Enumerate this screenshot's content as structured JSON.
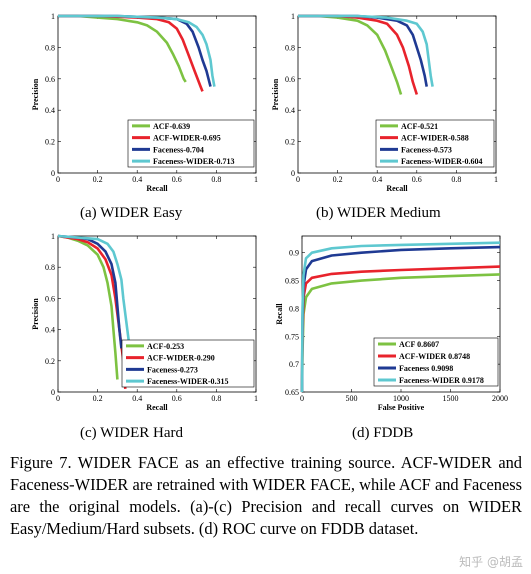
{
  "colors": {
    "acf": "#7dc242",
    "acf_wider": "#e8232c",
    "faceness": "#1f3a93",
    "faceness_wider": "#5ec8d0"
  },
  "chart_data": [
    {
      "type": "line",
      "id": "a",
      "xlabel": "Recall",
      "ylabel": "Precision",
      "xlim": [
        0,
        1
      ],
      "ylim": [
        0,
        1
      ],
      "xticks": [
        "0",
        "0.2",
        "0.4",
        "0.6",
        "0.8",
        "1"
      ],
      "yticks": [
        "0",
        "0.2",
        "0.4",
        "0.6",
        "0.8",
        "1"
      ],
      "legend_position": "bottom-right",
      "series": [
        {
          "name": "ACF-0.639",
          "color": "acf",
          "points": [
            [
              0,
              1
            ],
            [
              0.1,
              1
            ],
            [
              0.2,
              0.99
            ],
            [
              0.3,
              0.98
            ],
            [
              0.4,
              0.96
            ],
            [
              0.45,
              0.94
            ],
            [
              0.5,
              0.9
            ],
            [
              0.55,
              0.83
            ],
            [
              0.58,
              0.76
            ],
            [
              0.61,
              0.68
            ],
            [
              0.635,
              0.6
            ],
            [
              0.645,
              0.58
            ]
          ]
        },
        {
          "name": "ACF-WIDER-0.695",
          "color": "acf_wider",
          "points": [
            [
              0,
              1
            ],
            [
              0.2,
              1
            ],
            [
              0.4,
              0.99
            ],
            [
              0.5,
              0.98
            ],
            [
              0.56,
              0.96
            ],
            [
              0.6,
              0.92
            ],
            [
              0.63,
              0.85
            ],
            [
              0.66,
              0.75
            ],
            [
              0.69,
              0.65
            ],
            [
              0.72,
              0.55
            ],
            [
              0.73,
              0.52
            ]
          ]
        },
        {
          "name": "Faceness-0.704",
          "color": "faceness",
          "points": [
            [
              0,
              1
            ],
            [
              0.3,
              1
            ],
            [
              0.5,
              0.99
            ],
            [
              0.6,
              0.98
            ],
            [
              0.65,
              0.95
            ],
            [
              0.68,
              0.9
            ],
            [
              0.71,
              0.8
            ],
            [
              0.73,
              0.72
            ],
            [
              0.75,
              0.65
            ],
            [
              0.76,
              0.6
            ],
            [
              0.77,
              0.55
            ]
          ]
        },
        {
          "name": "Faceness-WIDER-0.713",
          "color": "faceness_wider",
          "points": [
            [
              0,
              1
            ],
            [
              0.3,
              1
            ],
            [
              0.5,
              0.99
            ],
            [
              0.6,
              0.98
            ],
            [
              0.66,
              0.96
            ],
            [
              0.7,
              0.93
            ],
            [
              0.73,
              0.88
            ],
            [
              0.75,
              0.82
            ],
            [
              0.77,
              0.72
            ],
            [
              0.78,
              0.62
            ],
            [
              0.79,
              0.55
            ]
          ]
        }
      ]
    },
    {
      "type": "line",
      "id": "b",
      "xlabel": "Recall",
      "ylabel": "Precision",
      "xlim": [
        0,
        1
      ],
      "ylim": [
        0,
        1
      ],
      "xticks": [
        "0",
        "0.2",
        "0.4",
        "0.6",
        "0.8",
        "1"
      ],
      "yticks": [
        "0",
        "0.2",
        "0.4",
        "0.6",
        "0.8",
        "1"
      ],
      "legend_position": "bottom-right",
      "series": [
        {
          "name": "ACF-0.521",
          "color": "acf",
          "points": [
            [
              0,
              1
            ],
            [
              0.1,
              1
            ],
            [
              0.2,
              0.99
            ],
            [
              0.3,
              0.97
            ],
            [
              0.35,
              0.94
            ],
            [
              0.4,
              0.88
            ],
            [
              0.44,
              0.78
            ],
            [
              0.47,
              0.68
            ],
            [
              0.5,
              0.58
            ],
            [
              0.52,
              0.5
            ]
          ]
        },
        {
          "name": "ACF-WIDER-0.588",
          "color": "acf_wider",
          "points": [
            [
              0,
              1
            ],
            [
              0.2,
              1
            ],
            [
              0.3,
              0.99
            ],
            [
              0.4,
              0.97
            ],
            [
              0.45,
              0.95
            ],
            [
              0.5,
              0.88
            ],
            [
              0.53,
              0.8
            ],
            [
              0.56,
              0.68
            ],
            [
              0.58,
              0.58
            ],
            [
              0.6,
              0.5
            ]
          ]
        },
        {
          "name": "Faceness-0.573",
          "color": "faceness",
          "points": [
            [
              0,
              1
            ],
            [
              0.3,
              1
            ],
            [
              0.4,
              0.99
            ],
            [
              0.5,
              0.97
            ],
            [
              0.55,
              0.94
            ],
            [
              0.58,
              0.88
            ],
            [
              0.6,
              0.8
            ],
            [
              0.62,
              0.72
            ],
            [
              0.64,
              0.62
            ],
            [
              0.65,
              0.55
            ]
          ]
        },
        {
          "name": "Faceness-WIDER-0.604",
          "color": "faceness_wider",
          "points": [
            [
              0,
              1
            ],
            [
              0.3,
              1
            ],
            [
              0.45,
              0.99
            ],
            [
              0.55,
              0.97
            ],
            [
              0.6,
              0.95
            ],
            [
              0.63,
              0.9
            ],
            [
              0.65,
              0.82
            ],
            [
              0.66,
              0.72
            ],
            [
              0.67,
              0.62
            ],
            [
              0.68,
              0.55
            ]
          ]
        }
      ]
    },
    {
      "type": "line",
      "id": "c",
      "xlabel": "Recall",
      "ylabel": "Precision",
      "xlim": [
        0,
        1
      ],
      "ylim": [
        0,
        1
      ],
      "xticks": [
        "0",
        "0.2",
        "0.4",
        "0.6",
        "0.8",
        "1"
      ],
      "yticks": [
        "0",
        "0.2",
        "0.4",
        "0.6",
        "0.8",
        "1"
      ],
      "legend_position": "bottom-right",
      "series": [
        {
          "name": "ACF-0.253",
          "color": "acf",
          "points": [
            [
              0,
              1
            ],
            [
              0.05,
              0.99
            ],
            [
              0.1,
              0.97
            ],
            [
              0.15,
              0.94
            ],
            [
              0.2,
              0.88
            ],
            [
              0.23,
              0.8
            ],
            [
              0.25,
              0.7
            ],
            [
              0.27,
              0.55
            ],
            [
              0.28,
              0.4
            ],
            [
              0.29,
              0.25
            ],
            [
              0.3,
              0.08
            ]
          ]
        },
        {
          "name": "ACF-WIDER-0.290",
          "color": "acf_wider",
          "points": [
            [
              0,
              1
            ],
            [
              0.05,
              0.99
            ],
            [
              0.1,
              0.98
            ],
            [
              0.15,
              0.96
            ],
            [
              0.2,
              0.92
            ],
            [
              0.24,
              0.85
            ],
            [
              0.27,
              0.75
            ],
            [
              0.29,
              0.6
            ],
            [
              0.31,
              0.4
            ],
            [
              0.33,
              0.2
            ],
            [
              0.34,
              0.02
            ]
          ]
        },
        {
          "name": "Faceness-0.273",
          "color": "faceness",
          "points": [
            [
              0,
              1
            ],
            [
              0.1,
              0.99
            ],
            [
              0.15,
              0.98
            ],
            [
              0.2,
              0.95
            ],
            [
              0.24,
              0.9
            ],
            [
              0.27,
              0.82
            ],
            [
              0.29,
              0.7
            ],
            [
              0.3,
              0.55
            ],
            [
              0.31,
              0.4
            ],
            [
              0.32,
              0.28
            ]
          ]
        },
        {
          "name": "Faceness-WIDER-0.315",
          "color": "faceness_wider",
          "points": [
            [
              0,
              1
            ],
            [
              0.1,
              0.99
            ],
            [
              0.2,
              0.98
            ],
            [
              0.25,
              0.95
            ],
            [
              0.28,
              0.9
            ],
            [
              0.3,
              0.82
            ],
            [
              0.32,
              0.72
            ],
            [
              0.33,
              0.6
            ],
            [
              0.34,
              0.5
            ],
            [
              0.35,
              0.4
            ],
            [
              0.36,
              0.3
            ]
          ]
        }
      ]
    },
    {
      "type": "line",
      "id": "d",
      "xlabel": "False Positive",
      "ylabel": "Recall",
      "xlim": [
        0,
        2000
      ],
      "ylim": [
        0.65,
        0.93
      ],
      "xticks": [
        "0",
        "500",
        "1000",
        "1500",
        "2000"
      ],
      "yticks": [
        "0.65",
        "0.7",
        "0.75",
        "0.8",
        "0.85",
        "0.9"
      ],
      "legend_position": "bottom-right",
      "series": [
        {
          "name": "ACF 0.8607",
          "color": "acf",
          "points": [
            [
              0,
              0.65
            ],
            [
              5,
              0.72
            ],
            [
              15,
              0.79
            ],
            [
              40,
              0.82
            ],
            [
              100,
              0.835
            ],
            [
              300,
              0.845
            ],
            [
              600,
              0.85
            ],
            [
              1000,
              0.855
            ],
            [
              1500,
              0.858
            ],
            [
              2000,
              0.861
            ]
          ]
        },
        {
          "name": "ACF-WIDER 0.8748",
          "color": "acf_wider",
          "points": [
            [
              0,
              0.65
            ],
            [
              5,
              0.75
            ],
            [
              15,
              0.82
            ],
            [
              40,
              0.845
            ],
            [
              100,
              0.855
            ],
            [
              300,
              0.862
            ],
            [
              600,
              0.866
            ],
            [
              1000,
              0.869
            ],
            [
              1500,
              0.872
            ],
            [
              2000,
              0.875
            ]
          ]
        },
        {
          "name": "Faceness 0.9098",
          "color": "faceness",
          "points": [
            [
              0,
              0.65
            ],
            [
              5,
              0.78
            ],
            [
              15,
              0.84
            ],
            [
              40,
              0.87
            ],
            [
              100,
              0.885
            ],
            [
              300,
              0.895
            ],
            [
              600,
              0.9
            ],
            [
              1000,
              0.905
            ],
            [
              1500,
              0.908
            ],
            [
              2000,
              0.91
            ]
          ]
        },
        {
          "name": "Faceness-WIDER 0.9178",
          "color": "faceness_wider",
          "points": [
            [
              0,
              0.65
            ],
            [
              5,
              0.8
            ],
            [
              15,
              0.86
            ],
            [
              40,
              0.89
            ],
            [
              100,
              0.9
            ],
            [
              300,
              0.908
            ],
            [
              600,
              0.912
            ],
            [
              1000,
              0.914
            ],
            [
              1500,
              0.916
            ],
            [
              2000,
              0.918
            ]
          ]
        }
      ]
    }
  ],
  "captions": {
    "a": "(a)  WIDER Easy",
    "b": "(b)  WIDER Medium",
    "c": "(c)  WIDER Hard",
    "d": "(d)  FDDB"
  },
  "figure_caption": "Figure 7. WIDER FACE as an effective training source.  ACF-WIDER and Faceness-WIDER are retrained with WIDER FACE, while ACF and Faceness are the original models.  (a)-(c) Precision and recall curves on WIDER Easy/Medium/Hard subsets. (d) ROC curve on FDDB dataset.",
  "watermark": "知乎 @胡孟"
}
